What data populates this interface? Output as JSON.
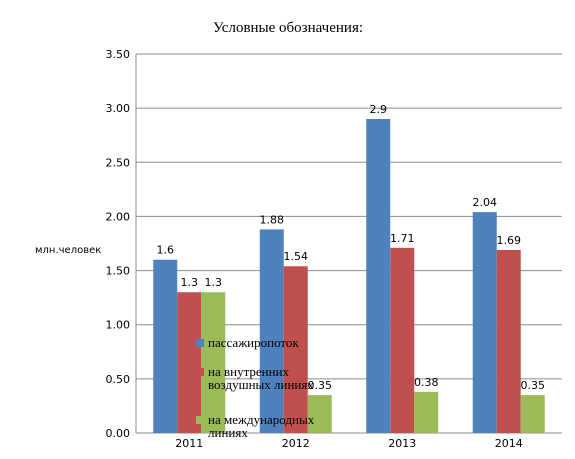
{
  "chart_data": {
    "type": "bar",
    "title": "Условные обозначения:",
    "ylabel": "млн.человек",
    "xlabel": "",
    "categories": [
      "2011",
      "2012",
      "2013",
      "2014"
    ],
    "yticks": [
      "0.00",
      "0.50",
      "1.00",
      "1.50",
      "2.00",
      "2.50",
      "3.00",
      "3.50"
    ],
    "ylim": [
      0,
      3.5
    ],
    "grid": true,
    "legend_position": "overlapping-plot-center",
    "series": [
      {
        "name": "пассажиропоток",
        "color": "#4F81BD",
        "values": [
          1.6,
          1.88,
          2.9,
          2.04
        ],
        "labels": [
          "1.6",
          "1.88",
          "2.9",
          "2.04"
        ]
      },
      {
        "name": "на внутренних воздушных линиях",
        "color": "#C0504D",
        "values": [
          1.3,
          1.54,
          1.71,
          1.69
        ],
        "labels": [
          "1.3",
          "1.54",
          "1.71",
          "1.69"
        ]
      },
      {
        "name": "на международных линиях",
        "color": "#9BBB59",
        "values": [
          1.3,
          0.35,
          0.38,
          0.35
        ],
        "labels": [
          "1.3",
          "0.35",
          "0.38",
          "0.35"
        ]
      }
    ],
    "legend_lines": [
      [
        "пассажиропоток"
      ],
      [
        "на внутренних",
        "воздушных линиях"
      ],
      [
        "на международных",
        "линиях"
      ]
    ]
  }
}
